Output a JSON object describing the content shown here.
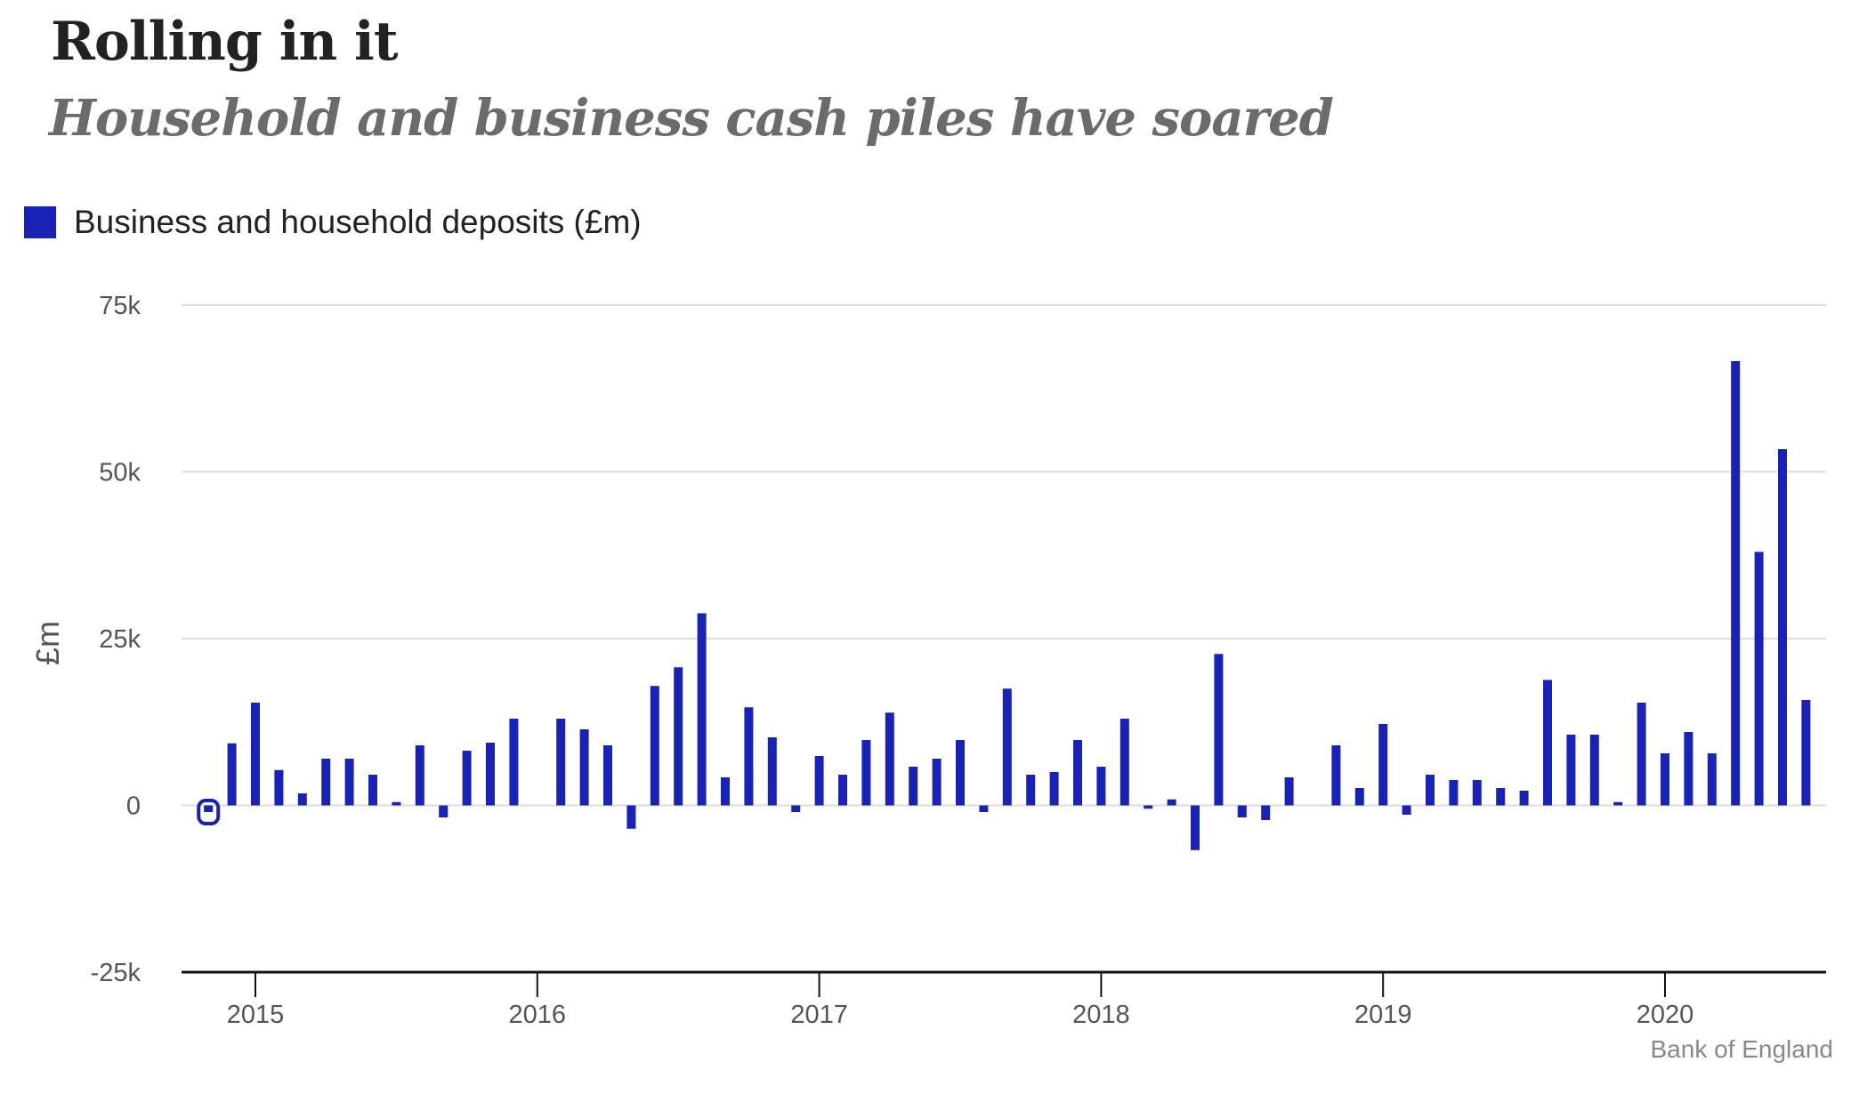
{
  "title": "Rolling in it",
  "subtitle": "Household and business cash piles have soared",
  "source": "Bank of England",
  "colors": {
    "bar": "#1a22b5",
    "grid": "#dddddd",
    "axis": "#111111"
  },
  "chart_data": {
    "type": "bar",
    "title": "Rolling in it",
    "subtitle": "Household and business cash piles have soared",
    "ylabel": "£m",
    "xlabel": "",
    "ylim": [
      -25000,
      75000
    ],
    "yticks": [
      -25000,
      0,
      25000,
      50000,
      75000
    ],
    "ytick_labels": [
      "-25k",
      "0",
      "25k",
      "50k",
      "75k"
    ],
    "xtick_labels": [
      "2015",
      "2016",
      "2017",
      "2018",
      "2019",
      "2020"
    ],
    "legend_position": "top-left",
    "grid": true,
    "series": [
      {
        "name": "Business and household deposits (£m)",
        "color": "#1a22b5",
        "points": [
          {
            "x": "2014-11",
            "y": -1000,
            "highlight": true
          },
          {
            "x": "2014-12",
            "y": 9300
          },
          {
            "x": "2015-01",
            "y": 15400
          },
          {
            "x": "2015-02",
            "y": 5300
          },
          {
            "x": "2015-03",
            "y": 1800
          },
          {
            "x": "2015-04",
            "y": 7000
          },
          {
            "x": "2015-05",
            "y": 7000
          },
          {
            "x": "2015-06",
            "y": 4600
          },
          {
            "x": "2015-07",
            "y": 500
          },
          {
            "x": "2015-08",
            "y": 9000
          },
          {
            "x": "2015-09",
            "y": -1800
          },
          {
            "x": "2015-10",
            "y": 8200
          },
          {
            "x": "2015-11",
            "y": 9400
          },
          {
            "x": "2015-12",
            "y": 13000
          },
          {
            "x": "2016-02",
            "y": 13000
          },
          {
            "x": "2016-03",
            "y": 11400
          },
          {
            "x": "2016-04",
            "y": 9000
          },
          {
            "x": "2016-05",
            "y": -3500
          },
          {
            "x": "2016-06",
            "y": 17900
          },
          {
            "x": "2016-07",
            "y": 20700
          },
          {
            "x": "2016-08",
            "y": 28800
          },
          {
            "x": "2016-09",
            "y": 4200
          },
          {
            "x": "2016-10",
            "y": 14700
          },
          {
            "x": "2016-11",
            "y": 10200
          },
          {
            "x": "2016-12",
            "y": -1000
          },
          {
            "x": "2017-01",
            "y": 7400
          },
          {
            "x": "2017-02",
            "y": 4600
          },
          {
            "x": "2017-03",
            "y": 9800
          },
          {
            "x": "2017-04",
            "y": 13900
          },
          {
            "x": "2017-05",
            "y": 5800
          },
          {
            "x": "2017-06",
            "y": 7000
          },
          {
            "x": "2017-07",
            "y": 9800
          },
          {
            "x": "2017-08",
            "y": -1000
          },
          {
            "x": "2017-09",
            "y": 17500
          },
          {
            "x": "2017-10",
            "y": 4600
          },
          {
            "x": "2017-11",
            "y": 5000
          },
          {
            "x": "2017-12",
            "y": 9800
          },
          {
            "x": "2018-01",
            "y": 5800
          },
          {
            "x": "2018-02",
            "y": 13000
          },
          {
            "x": "2018-03",
            "y": -500
          },
          {
            "x": "2018-04",
            "y": 900
          },
          {
            "x": "2018-05",
            "y": -6700
          },
          {
            "x": "2018-06",
            "y": 22700
          },
          {
            "x": "2018-07",
            "y": -1800
          },
          {
            "x": "2018-08",
            "y": -2200
          },
          {
            "x": "2018-09",
            "y": 4200
          },
          {
            "x": "2018-11",
            "y": 9000
          },
          {
            "x": "2018-12",
            "y": 2600
          },
          {
            "x": "2019-01",
            "y": 12200
          },
          {
            "x": "2019-02",
            "y": -1400
          },
          {
            "x": "2019-03",
            "y": 4600
          },
          {
            "x": "2019-04",
            "y": 3800
          },
          {
            "x": "2019-05",
            "y": 3800
          },
          {
            "x": "2019-06",
            "y": 2600
          },
          {
            "x": "2019-07",
            "y": 2200
          },
          {
            "x": "2019-08",
            "y": 18800
          },
          {
            "x": "2019-09",
            "y": 10600
          },
          {
            "x": "2019-10",
            "y": 10600
          },
          {
            "x": "2019-11",
            "y": 500
          },
          {
            "x": "2019-12",
            "y": 15400
          },
          {
            "x": "2020-01",
            "y": 7800
          },
          {
            "x": "2020-02",
            "y": 11000
          },
          {
            "x": "2020-03",
            "y": 7800
          },
          {
            "x": "2020-04",
            "y": 66600
          },
          {
            "x": "2020-05",
            "y": 38000
          },
          {
            "x": "2020-06",
            "y": 53400
          },
          {
            "x": "2020-07",
            "y": 15800
          }
        ]
      }
    ]
  }
}
